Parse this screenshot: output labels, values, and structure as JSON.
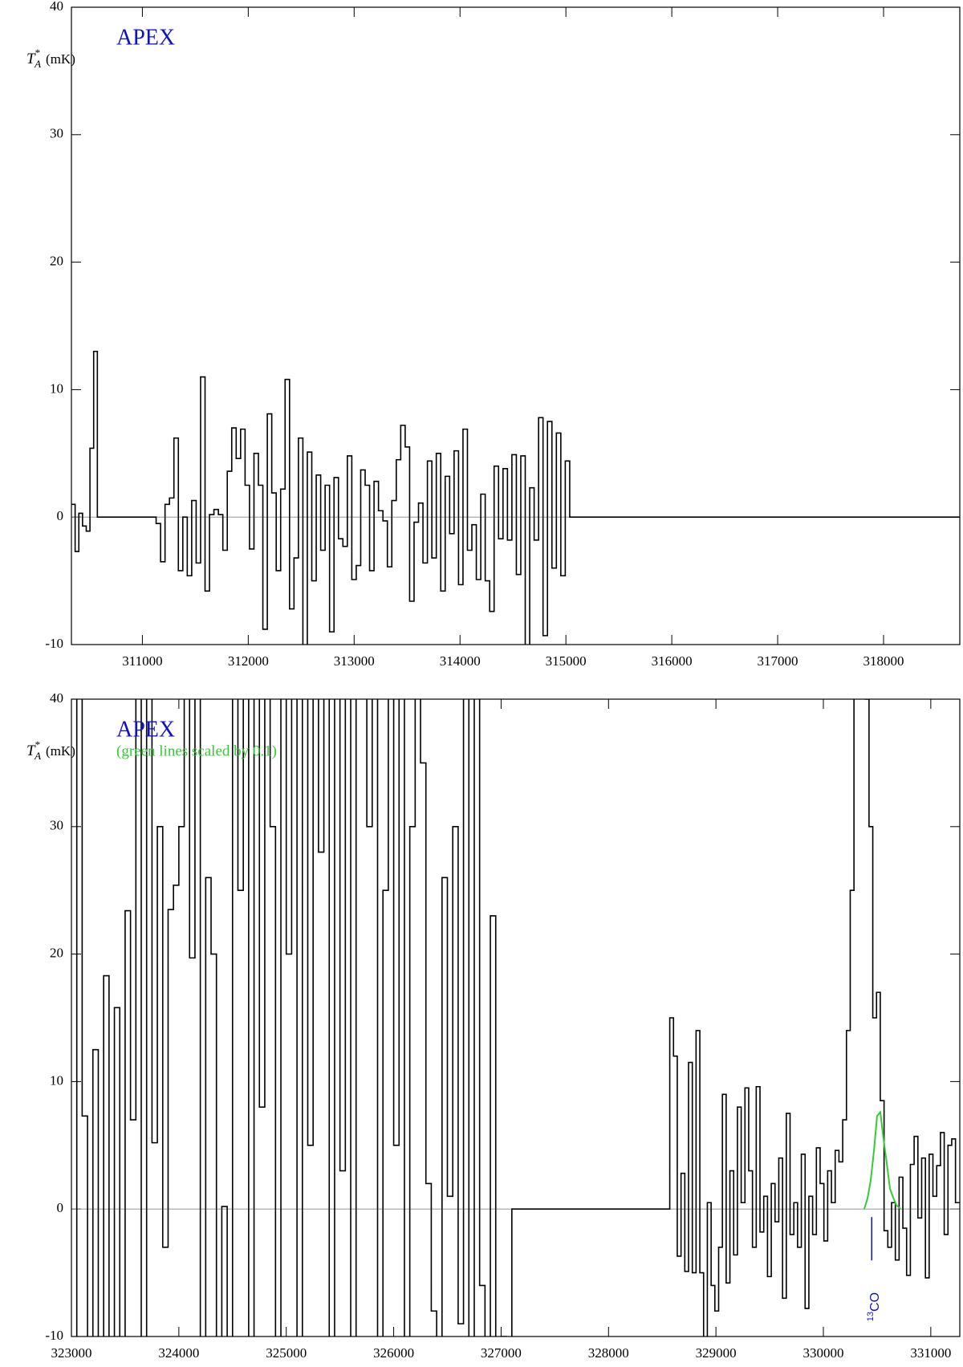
{
  "chart_data": [
    {
      "type": "line",
      "step": true,
      "ylabel": {
        "symbol": "T",
        "sup": "*",
        "sub": "A",
        "unit": "(mK)"
      },
      "annotations": [
        {
          "text": "APEX",
          "color": "#1010c8"
        }
      ],
      "xlim": [
        310330,
        318720
      ],
      "ylim": [
        -10,
        40
      ],
      "xticks": [
        311000,
        312000,
        313000,
        314000,
        315000,
        316000,
        317000,
        318000
      ],
      "yticks": [
        -10,
        0,
        10,
        20,
        30,
        40
      ],
      "zero_line": true,
      "series": [
        {
          "color": "#000000",
          "x": [
            310330,
            310365,
            310400,
            310435,
            310470,
            310505,
            310540,
            310575,
            311130,
            311172,
            311214,
            311256,
            311298,
            311340,
            311382,
            311424,
            311466,
            311508,
            311550,
            311592,
            311634,
            311676,
            311718,
            311760,
            311802,
            311844,
            311886,
            311928,
            311970,
            312012,
            312054,
            312096,
            312138,
            312180,
            312222,
            312264,
            312306,
            312348,
            312390,
            312432,
            312474,
            312516,
            312558,
            312600,
            312642,
            312684,
            312726,
            312768,
            312810,
            312852,
            312894,
            312936,
            312978,
            313020,
            313062,
            313104,
            313146,
            313188,
            313230,
            313272,
            313314,
            313356,
            313398,
            313440,
            313482,
            313524,
            313566,
            313608,
            313650,
            313692,
            313734,
            313776,
            313818,
            313860,
            313902,
            313944,
            313986,
            314028,
            314070,
            314112,
            314154,
            314196,
            314238,
            314280,
            314322,
            314364,
            314406,
            314448,
            314490,
            314532,
            314574,
            314616,
            314658,
            314700,
            314742,
            314784,
            314826,
            314868,
            314910,
            314952,
            314994,
            315036,
            318720
          ],
          "values": [
            1,
            -2.7,
            0.3,
            -0.7,
            -1.1,
            5.4,
            13,
            0,
            -0.5,
            -3.5,
            1,
            1.5,
            6.2,
            -4.2,
            0,
            -4.6,
            1.3,
            -3.6,
            11,
            -5.8,
            0.2,
            0.6,
            0.2,
            -2.6,
            3.6,
            7,
            4.6,
            6.9,
            2.5,
            -2.5,
            5,
            2.5,
            -8.8,
            8.1,
            1.9,
            -4.2,
            2.2,
            10.8,
            -7.2,
            -3.2,
            6.2,
            -10.5,
            5.1,
            -5,
            3.3,
            -2.6,
            2.5,
            -9,
            3.1,
            -1.7,
            -2.3,
            4.8,
            -4.9,
            -3.8,
            3.7,
            2.5,
            -4.2,
            2.8,
            0.5,
            -0.3,
            -3.9,
            1.3,
            4.5,
            7.2,
            5.5,
            -6.6,
            -0.4,
            1.1,
            -3.6,
            4.4,
            -3.2,
            5,
            -5.8,
            3.2,
            -1.3,
            5.2,
            -5.3,
            6.9,
            -2.6,
            -0.6,
            -4.9,
            1.8,
            -5,
            -7.4,
            4,
            -1.7,
            3.8,
            -1.8,
            4.9,
            -4.5,
            4.8,
            -10.1,
            2.3,
            -1.8,
            7.8,
            -9.3,
            7.5,
            -4,
            6.6,
            -4.6,
            4.4,
            0,
            0
          ]
        }
      ]
    },
    {
      "type": "line",
      "step": true,
      "ylabel": {
        "symbol": "T",
        "sup": "*",
        "sub": "A",
        "unit": "(mK)"
      },
      "annotations": [
        {
          "text": "APEX",
          "color": "#1010c8"
        },
        {
          "text": "(green lines scaled by 0.1)",
          "color": "#33cc33"
        }
      ],
      "xlim": [
        323000,
        331270
      ],
      "ylim": [
        -10,
        40
      ],
      "xticks": [
        323000,
        324000,
        325000,
        326000,
        327000,
        328000,
        329000,
        330000,
        331000
      ],
      "yticks": [
        -10,
        0,
        10,
        20,
        30,
        40
      ],
      "zero_line": true,
      "line_labels": [
        {
          "x": 330450,
          "prefix": "13",
          "name": "CO",
          "color": "#1010c8"
        }
      ],
      "series": [
        {
          "color": "#000000",
          "x": [
            323000,
            323050,
            323100,
            323150,
            323200,
            323250,
            323300,
            323350,
            323400,
            323450,
            323500,
            323550,
            323600,
            323650,
            323700,
            323750,
            323800,
            323850,
            323900,
            323950,
            324000,
            324050,
            324100,
            324150,
            324200,
            324250,
            324300,
            324350,
            324400,
            324450,
            324500,
            324550,
            324600,
            324650,
            324700,
            324750,
            324800,
            324850,
            324900,
            324950,
            325000,
            325050,
            325100,
            325150,
            325200,
            325250,
            325300,
            325350,
            325400,
            325450,
            325500,
            325550,
            325600,
            325650,
            325700,
            325750,
            325800,
            325850,
            325900,
            325950,
            326000,
            326050,
            326100,
            326150,
            326200,
            326250,
            326300,
            326350,
            326400,
            326450,
            326500,
            326550,
            326600,
            326650,
            326700,
            326750,
            326800,
            326850,
            326900,
            326950,
            327000,
            327050,
            327100,
            328570,
            328605,
            328640,
            328675,
            328710,
            328745,
            328780,
            328815,
            328850,
            328885,
            328920,
            328955,
            328990,
            329025,
            329060,
            329095,
            329130,
            329165,
            329200,
            329235,
            329270,
            329305,
            329340,
            329375,
            329410,
            329445,
            329480,
            329515,
            329550,
            329585,
            329620,
            329655,
            329690,
            329725,
            329760,
            329795,
            329830,
            329865,
            329900,
            329935,
            329970,
            330005,
            330040,
            330075,
            330110,
            330145,
            330180,
            330215,
            330250,
            330285,
            330320,
            330355,
            330390,
            330425,
            330460,
            330495,
            330530,
            330565,
            330600,
            330635,
            330670,
            330705,
            330740,
            330775,
            330810,
            330845,
            330880,
            330915,
            330950,
            330985,
            331020,
            331055,
            331090,
            331125,
            331160,
            331195,
            331230,
            331270
          ],
          "values": [
            -15,
            60,
            7.3,
            -15,
            12.5,
            -15,
            18.3,
            -15,
            15.8,
            -15,
            23.4,
            7,
            50,
            -15,
            60,
            5.2,
            30,
            -3,
            23.5,
            25.4,
            30,
            50,
            19.7,
            45,
            -15,
            26,
            20,
            -15,
            0.2,
            -15,
            55,
            25,
            60,
            -15,
            50,
            8,
            60,
            30,
            -15,
            55,
            20,
            60,
            -15,
            45,
            5,
            60,
            28,
            60,
            -15,
            50,
            3,
            60,
            -15,
            45,
            60,
            30,
            60,
            -15,
            25,
            60,
            5,
            45,
            -15,
            30,
            60,
            35,
            2,
            -8,
            -15,
            26,
            1,
            30,
            -9,
            60,
            -15,
            55,
            -6,
            -15,
            23,
            -15,
            -10,
            -15,
            0,
            15,
            12,
            -3.7,
            2.8,
            -4.9,
            11.5,
            -5,
            14,
            -5,
            -14,
            0.5,
            -6,
            -8,
            -3,
            9,
            -5.8,
            3,
            -3.6,
            8,
            0.5,
            9.5,
            3,
            -3,
            9.6,
            -1.8,
            1,
            -5.3,
            2,
            -1,
            4,
            -7,
            7.5,
            -2,
            0.5,
            -3,
            4.3,
            -7.8,
            1,
            -2,
            4.8,
            2,
            -2.5,
            3,
            0.5,
            4.6,
            3.7,
            7,
            14,
            25,
            45,
            60,
            60,
            40,
            30,
            15,
            17,
            8.5,
            -1.7,
            -3,
            0.5,
            -4,
            2.5,
            -1.5,
            -5.2,
            3.5,
            5.7,
            -0.7,
            4,
            -5.4,
            4.3,
            1,
            3.4,
            6,
            -2,
            5,
            5.5,
            0.5,
            0.5
          ]
        },
        {
          "color": "#33cc33",
          "step": false,
          "x": [
            330380,
            330410,
            330440,
            330470,
            330500,
            330530,
            330560,
            330590,
            330620,
            330650,
            330680,
            330720
          ],
          "values": [
            0,
            0.8,
            2.2,
            4.5,
            7.3,
            7.6,
            5.5,
            3.6,
            1.6,
            0.9,
            0.3,
            0
          ]
        }
      ]
    }
  ]
}
